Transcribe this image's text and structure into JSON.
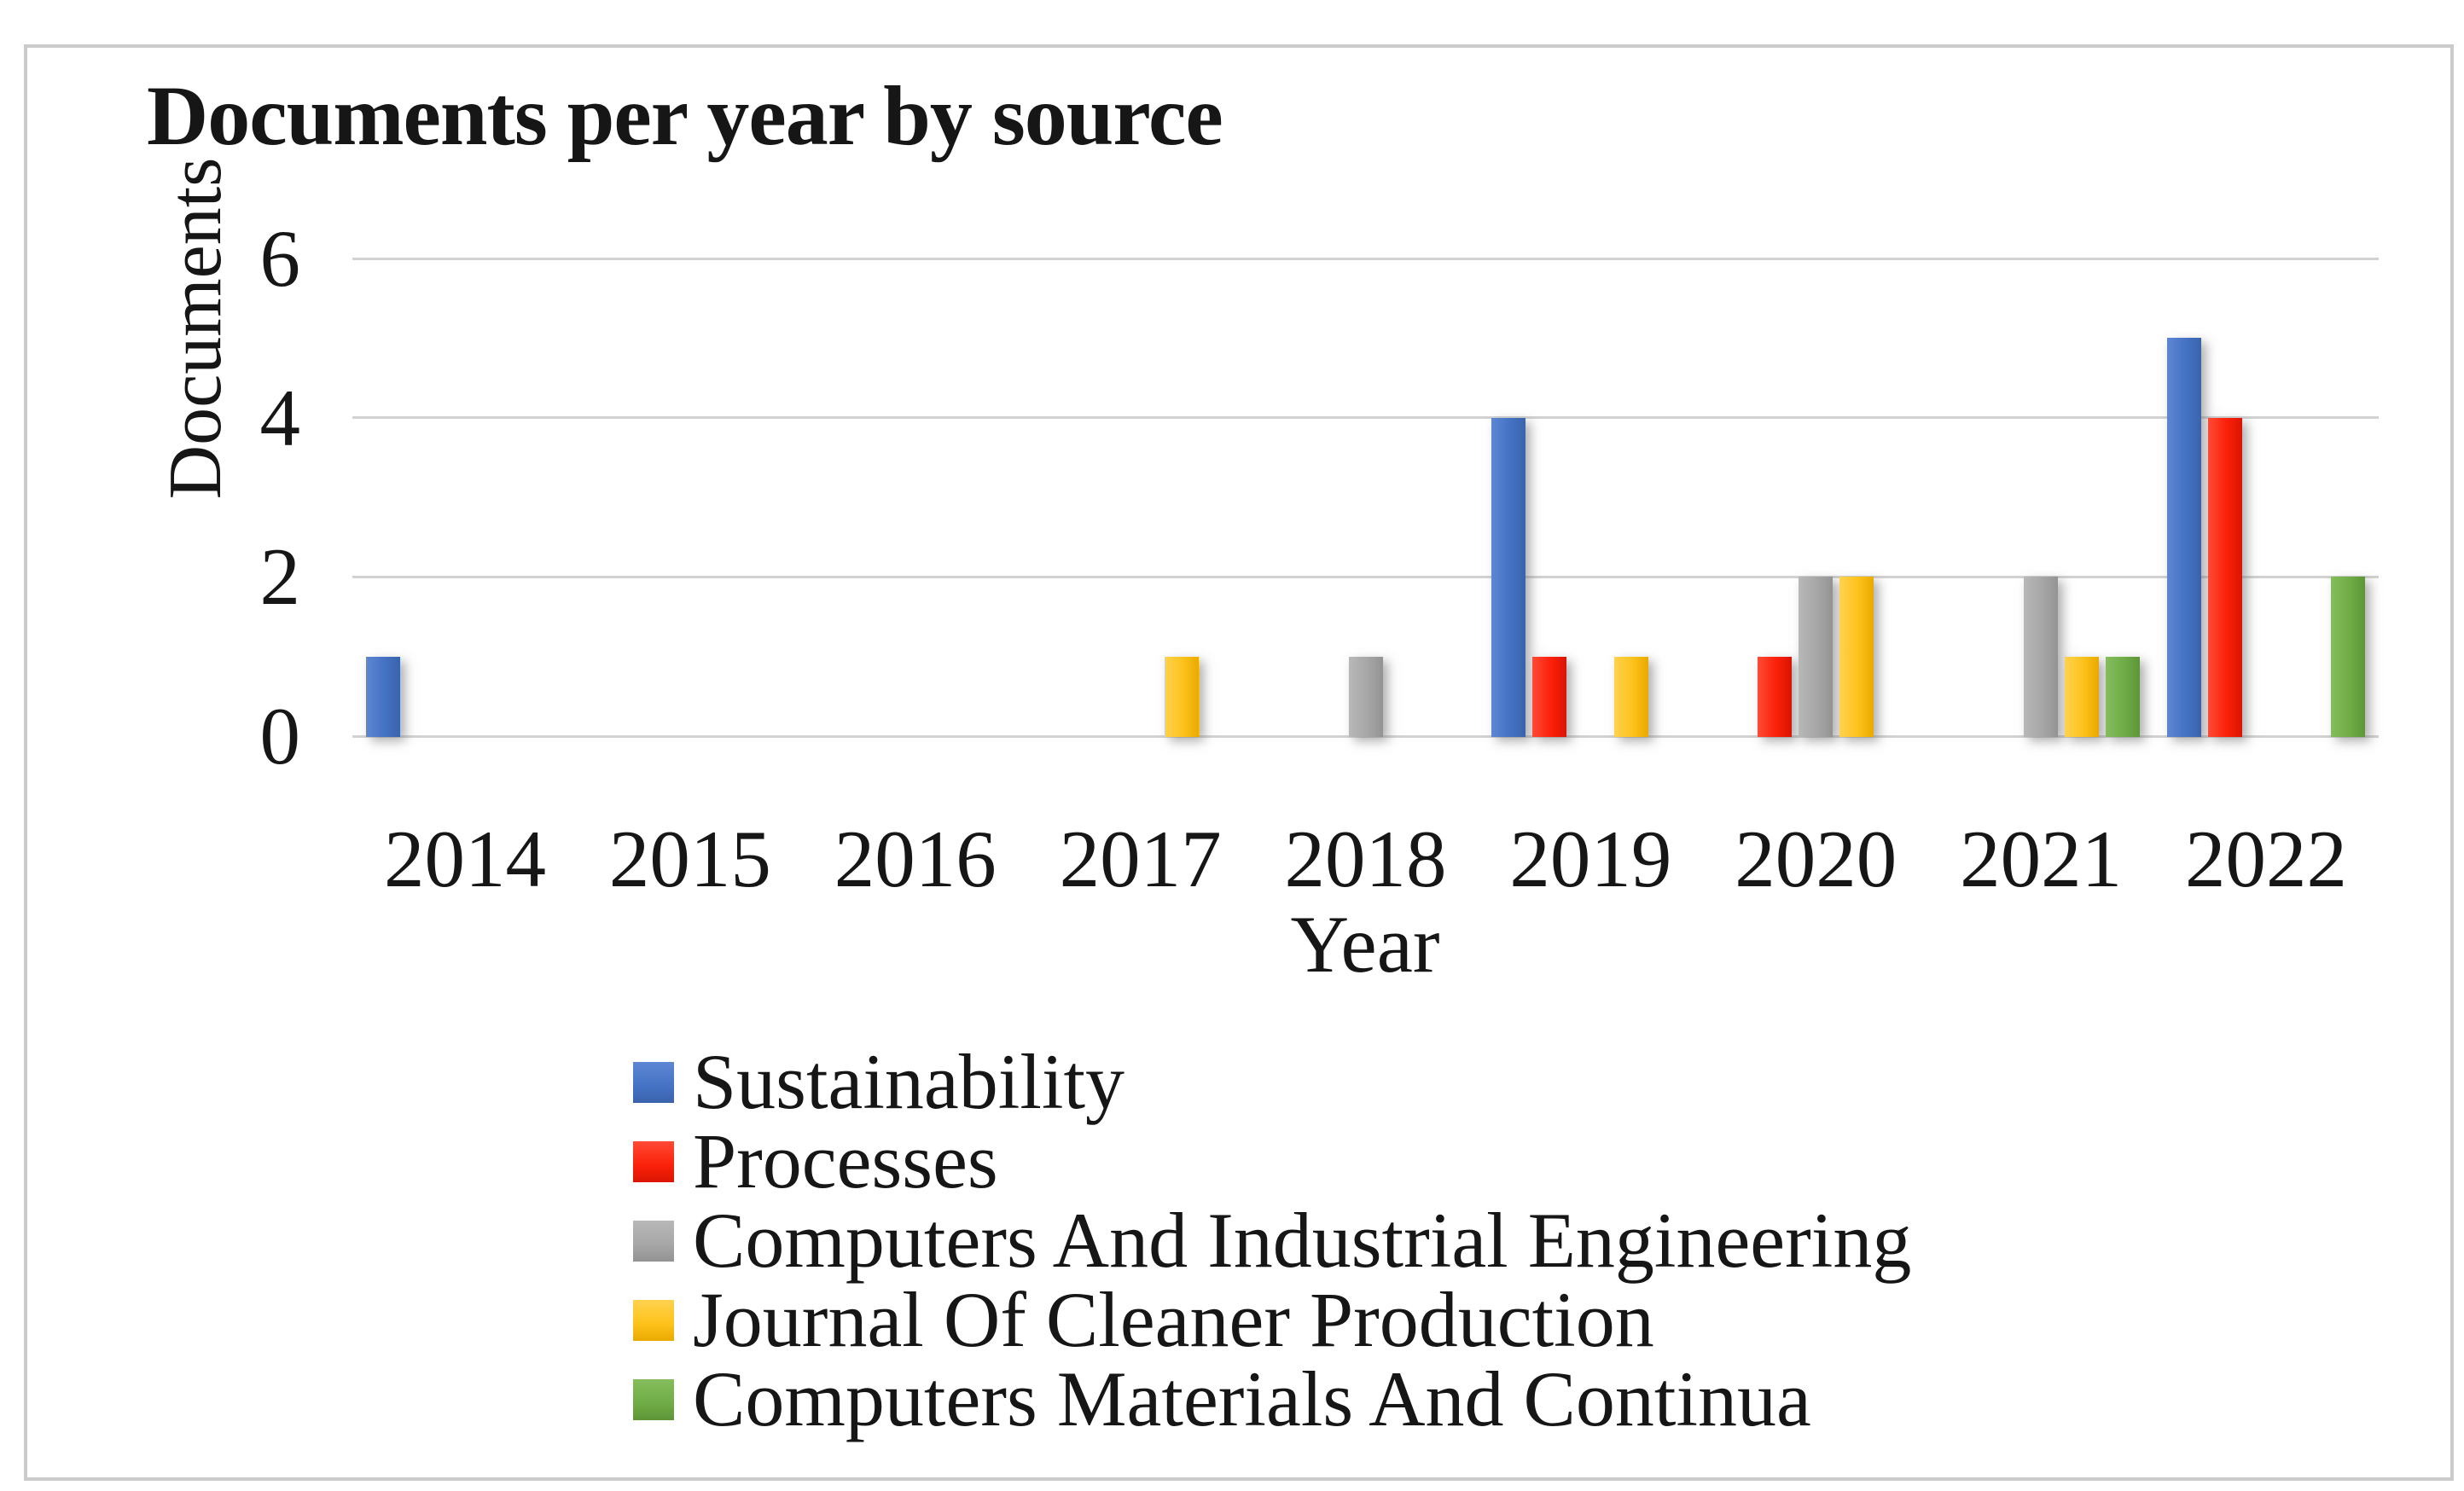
{
  "chart_data": {
    "type": "bar",
    "title": "Documents per year by source",
    "xlabel": "Year",
    "ylabel": "Documents",
    "ylim": [
      0,
      6
    ],
    "yticks": [
      0,
      2,
      4,
      6
    ],
    "grid": true,
    "legend_position": "bottom-left",
    "categories": [
      "2014",
      "2015",
      "2016",
      "2017",
      "2018",
      "2019",
      "2020",
      "2021",
      "2022"
    ],
    "series": [
      {
        "name": "Sustainability",
        "color": "#4472C4",
        "color_light": "#5d87d3",
        "color_dark": "#3a63ab",
        "values": [
          1,
          0,
          0,
          0,
          0,
          4,
          0,
          0,
          5
        ]
      },
      {
        "name": "Processes",
        "color": "#FB2009",
        "color_light": "#ff4a35",
        "color_dark": "#d91502",
        "values": [
          0,
          0,
          0,
          0,
          0,
          1,
          1,
          0,
          4
        ]
      },
      {
        "name": "Computers And Industrial Engineering",
        "color": "#A6A6A6",
        "color_light": "#b8b8b8",
        "color_dark": "#939393",
        "values": [
          0,
          0,
          0,
          0,
          1,
          0,
          2,
          2,
          0
        ]
      },
      {
        "name": "Journal Of Cleaner Production",
        "color": "#FDC21A",
        "color_light": "#ffd24e",
        "color_dark": "#e9a900",
        "values": [
          0,
          0,
          0,
          1,
          0,
          1,
          2,
          1,
          0
        ]
      },
      {
        "name": "Computers Materials And Continua",
        "color": "#6FAC46",
        "color_light": "#84bd5d",
        "color_dark": "#5d9537",
        "values": [
          0,
          0,
          0,
          0,
          0,
          0,
          0,
          1,
          2
        ]
      }
    ]
  }
}
